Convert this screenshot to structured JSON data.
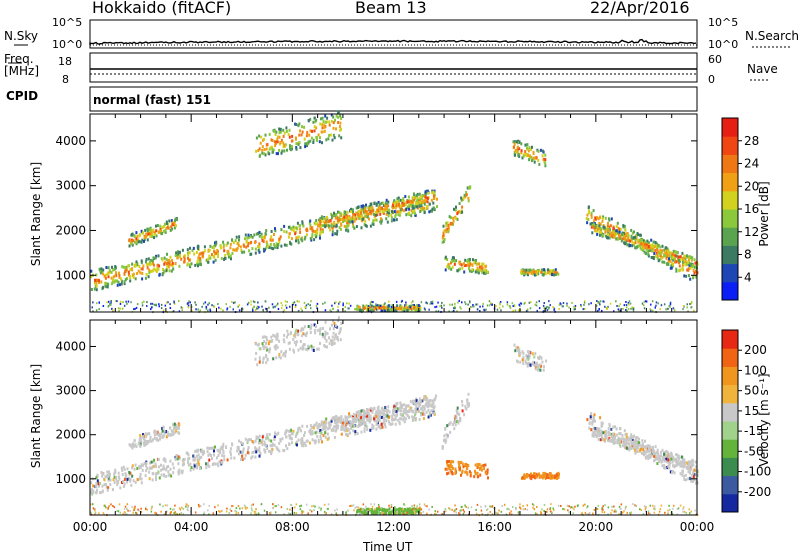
{
  "header": {
    "station": "Hokkaido (fitACF)",
    "beam": "Beam 13",
    "date": "22/Apr/2016"
  },
  "noise_panel": {
    "left_label": "N.Sky",
    "right_label": "N.Search",
    "ytick_top": "10^5",
    "ytick_bottom": "10^0"
  },
  "freq_panel": {
    "left_label_1": "Freq.",
    "left_label_2": "[MHz]",
    "right_label": "Nave",
    "ytick_left_top": "18",
    "ytick_left_bottom": "8",
    "ytick_right_top": "60",
    "ytick_right_bottom": "0"
  },
  "cpid_panel": {
    "label": "CPID",
    "value": "normal (fast) 151"
  },
  "chart_data": [
    {
      "type": "heatmap",
      "name": "power",
      "ylabel": "Slant Range [km]",
      "yticks": [
        1000,
        2000,
        3000,
        4000
      ],
      "ylim": [
        180,
        4600
      ],
      "colorbar": {
        "label": "Power [dB]",
        "ticks": [
          "4",
          "8",
          "12",
          "16",
          "20",
          "24",
          "28"
        ],
        "colors": [
          "#0a1ef5",
          "#1e46b4",
          "#3c7a64",
          "#5aa450",
          "#8cc83c",
          "#d2d21e",
          "#f0a014",
          "#f07814",
          "#f04614",
          "#e61e14"
        ]
      }
    },
    {
      "type": "heatmap",
      "name": "velocity",
      "ylabel": "Slant Range [km]",
      "yticks": [
        1000,
        2000,
        3000,
        4000
      ],
      "ylim": [
        180,
        4600
      ],
      "xlabel": "Time UT",
      "xticks": [
        "00:00",
        "04:00",
        "08:00",
        "12:00",
        "16:00",
        "20:00",
        "00:00"
      ],
      "colorbar": {
        "label": "Velocity [m s⁻¹]",
        "ticks": [
          "200",
          "100",
          "50",
          "15",
          "-15",
          "-50",
          "-100",
          "-200"
        ],
        "colors": [
          "#1428a0",
          "#3c5aa0",
          "#3c8c50",
          "#64b43c",
          "#a0d28c",
          "#c8c8c8",
          "#f0b43c",
          "#f0961e",
          "#f06414",
          "#e62814"
        ]
      }
    }
  ]
}
